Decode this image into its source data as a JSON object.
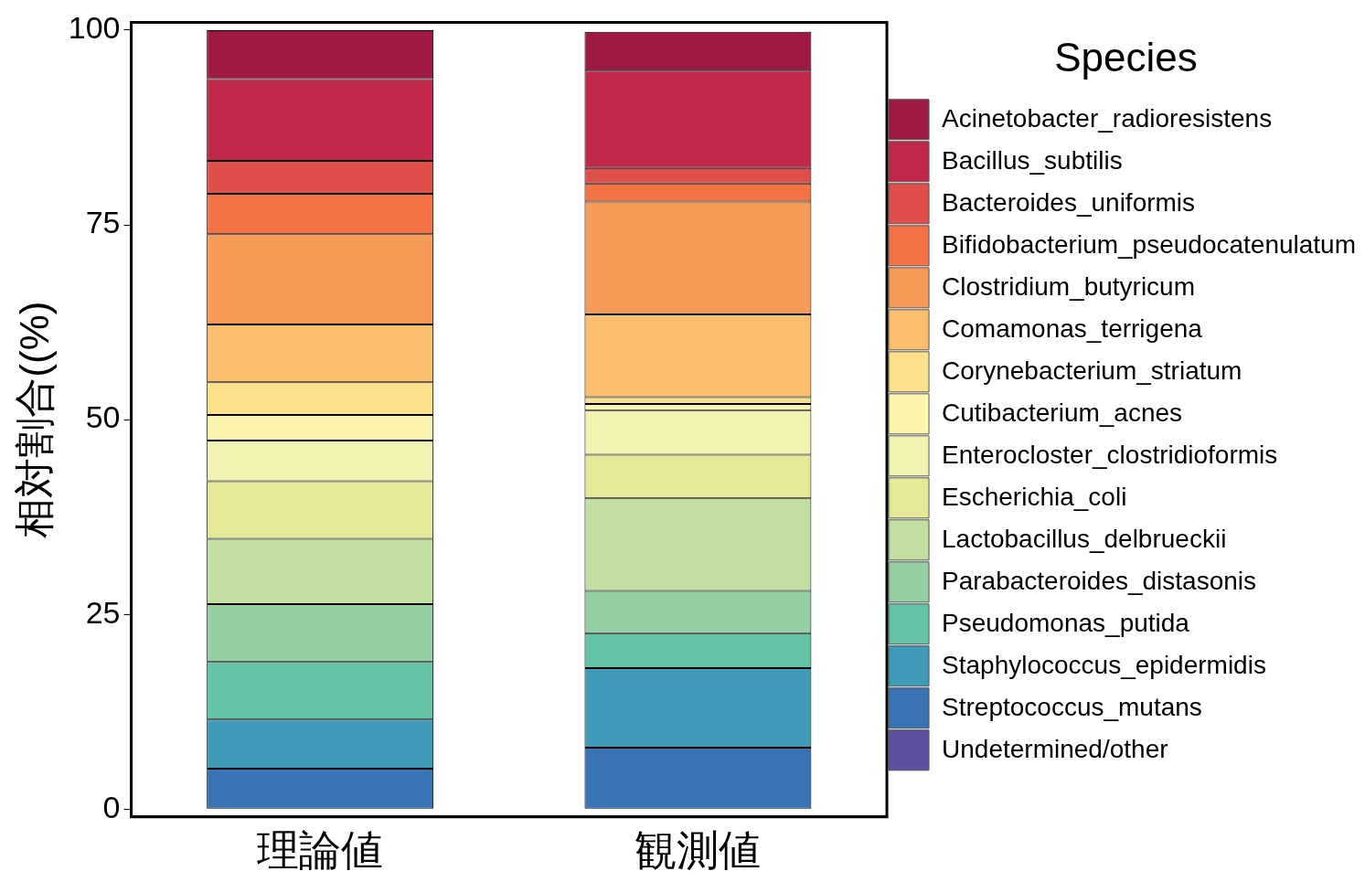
{
  "chart_data": {
    "type": "bar",
    "stacked": true,
    "ylabel": "相対割合((%)",
    "legend_title": "Species",
    "legend": "right",
    "categories": [
      "理論値",
      "観測値"
    ],
    "ylim": [
      -1,
      101
    ],
    "yticks": [
      0,
      25,
      50,
      75,
      100
    ],
    "grid": false,
    "series": [
      {
        "name": "Undetermined/other",
        "color": "#5e4fa2",
        "values": [
          0,
          0
        ]
      },
      {
        "name": "Streptococcus_mutans",
        "color": "#3973b3",
        "values": [
          5.2,
          7.9
        ]
      },
      {
        "name": "Staphylococcus_epidermidis",
        "color": "#3f9bb7",
        "values": [
          6.3,
          10.2
        ]
      },
      {
        "name": "Pseudomonas_putida",
        "color": "#64c3a6",
        "values": [
          7.4,
          4.5
        ]
      },
      {
        "name": "Parabacteroides_distasonis",
        "color": "#95d0a2",
        "values": [
          7.4,
          5.4
        ]
      },
      {
        "name": "Lactobacillus_delbrueckii",
        "color": "#c0dfa0",
        "values": [
          8.4,
          11.9
        ]
      },
      {
        "name": "Escherichia_coli",
        "color": "#e5e997",
        "values": [
          7.4,
          5.6
        ]
      },
      {
        "name": "Enterocloster_clostridioformis",
        "color": "#f2f3b3",
        "values": [
          5.2,
          5.7
        ]
      },
      {
        "name": "Cutibacterium_acnes",
        "color": "#fbf5ad",
        "values": [
          3.3,
          0.8
        ]
      },
      {
        "name": "Corynebacterium_striatum",
        "color": "#fce08a",
        "values": [
          4.2,
          0.9
        ]
      },
      {
        "name": "Comamonas_terrigena",
        "color": "#fbbd6e",
        "values": [
          7.4,
          10.6
        ]
      },
      {
        "name": "Clostridium_butyricum",
        "color": "#f69a57",
        "values": [
          11.6,
          14.5
        ]
      },
      {
        "name": "Bifidobacterium_pseudocatenulatum",
        "color": "#f47245",
        "values": [
          5.2,
          2.3
        ]
      },
      {
        "name": "Bacteroides_uniformis",
        "color": "#e04f4a",
        "values": [
          4.2,
          2.0
        ]
      },
      {
        "name": "Bacillus_subtilis",
        "color": "#c12747",
        "values": [
          10.5,
          12.5
        ]
      },
      {
        "name": "Acinetobacter_radioresistens",
        "color": "#9e1a42",
        "values": [
          6.3,
          5.0
        ]
      }
    ]
  }
}
